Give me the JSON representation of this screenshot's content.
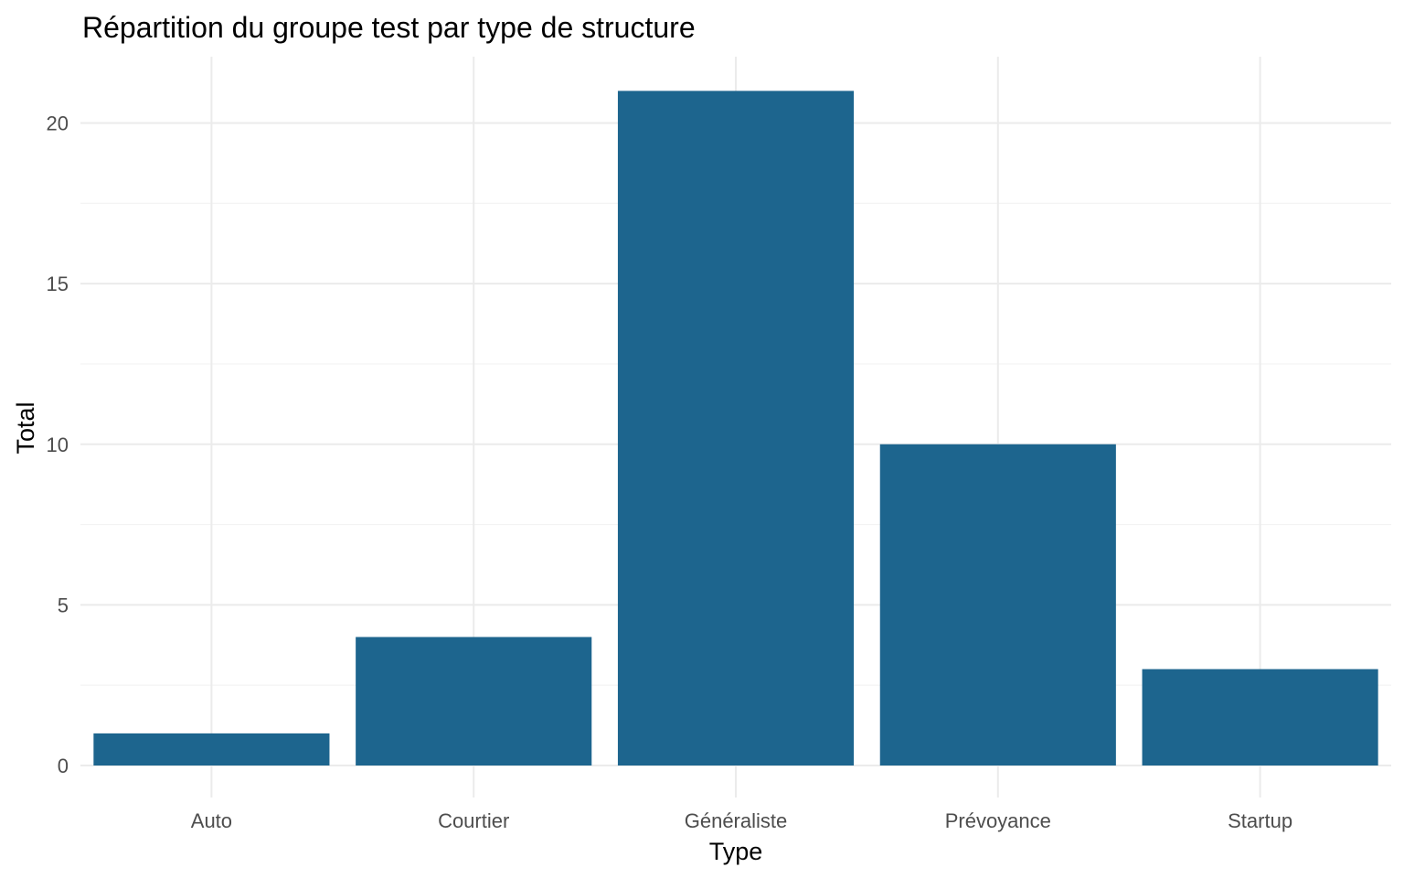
{
  "chart_data": {
    "type": "bar",
    "title": "Répartition du groupe test par type de structure",
    "xlabel": "Type",
    "ylabel": "Total",
    "categories": [
      "Auto",
      "Courtier",
      "Généraliste",
      "Prévoyance",
      "Startup"
    ],
    "values": [
      1,
      4,
      21,
      10,
      3
    ],
    "ylim": [
      0,
      22.1
    ],
    "yticks": [
      0,
      5,
      10,
      15,
      20
    ],
    "grid": true,
    "legend": "none",
    "colors": {
      "bar": "#1d658e",
      "grid_major": "#ebebeb",
      "grid_minor": "#f3f3f3",
      "tick_text": "#4d4d4d",
      "title_text": "#000000"
    }
  }
}
